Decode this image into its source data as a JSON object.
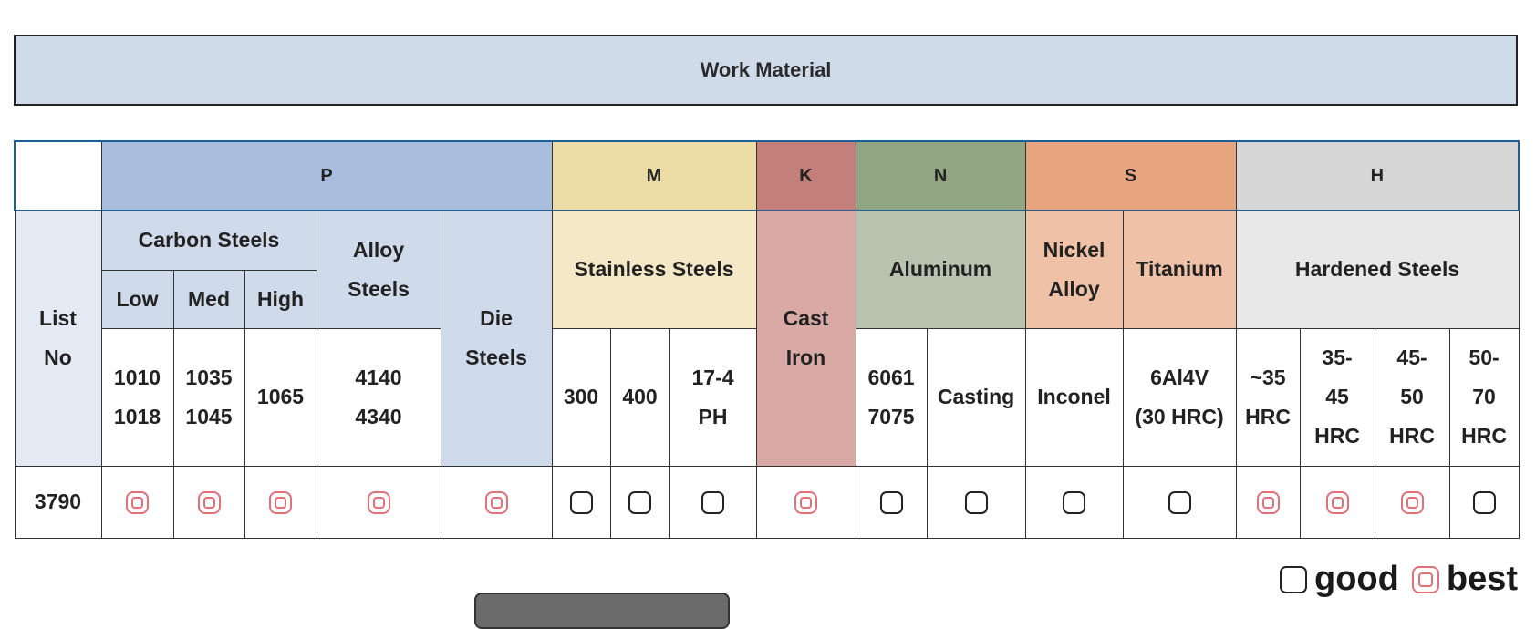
{
  "banner": {
    "title": "Work Material"
  },
  "groups": {
    "P": "P",
    "M": "M",
    "K": "K",
    "N": "N",
    "S": "S",
    "H": "H"
  },
  "headers": {
    "list_no": [
      "List",
      "No"
    ],
    "carbon_steels": "Carbon Steels",
    "low": "Low",
    "med": "Med",
    "high": "High",
    "alloy_steels": [
      "Alloy",
      "Steels"
    ],
    "die_steels": [
      "Die",
      "Steels"
    ],
    "stainless_steels": "Stainless Steels",
    "cast_iron": [
      "Cast",
      "Iron"
    ],
    "aluminum": "Aluminum",
    "nickel_alloy": [
      "Nickel",
      "Alloy"
    ],
    "titanium": "Titanium",
    "hardened_steels": "Hardened Steels"
  },
  "grades": {
    "low": [
      "1010",
      "1018"
    ],
    "med": [
      "1035",
      "1045"
    ],
    "high": "1065",
    "alloy": [
      "4140",
      "4340"
    ],
    "ss300": "300",
    "ss400": "400",
    "ss174": [
      "17-4",
      "PH"
    ],
    "al6061": [
      "6061",
      "7075"
    ],
    "casting": "Casting",
    "inconel": "Inconel",
    "ti": [
      "6Al4V",
      "(30 HRC)"
    ],
    "h35": [
      "~35",
      "HRC"
    ],
    "h3545": [
      "35-",
      "45",
      "HRC"
    ],
    "h4550": [
      "45-",
      "50",
      "HRC"
    ],
    "h5070": [
      "50-",
      "70",
      "HRC"
    ]
  },
  "row": {
    "list_no": "3790",
    "ratings": [
      "best",
      "best",
      "best",
      "best",
      "best",
      "good",
      "good",
      "good",
      "best",
      "good",
      "good",
      "good",
      "good",
      "best",
      "best",
      "best",
      "good"
    ]
  },
  "legend": {
    "good": "good",
    "best": "best"
  }
}
